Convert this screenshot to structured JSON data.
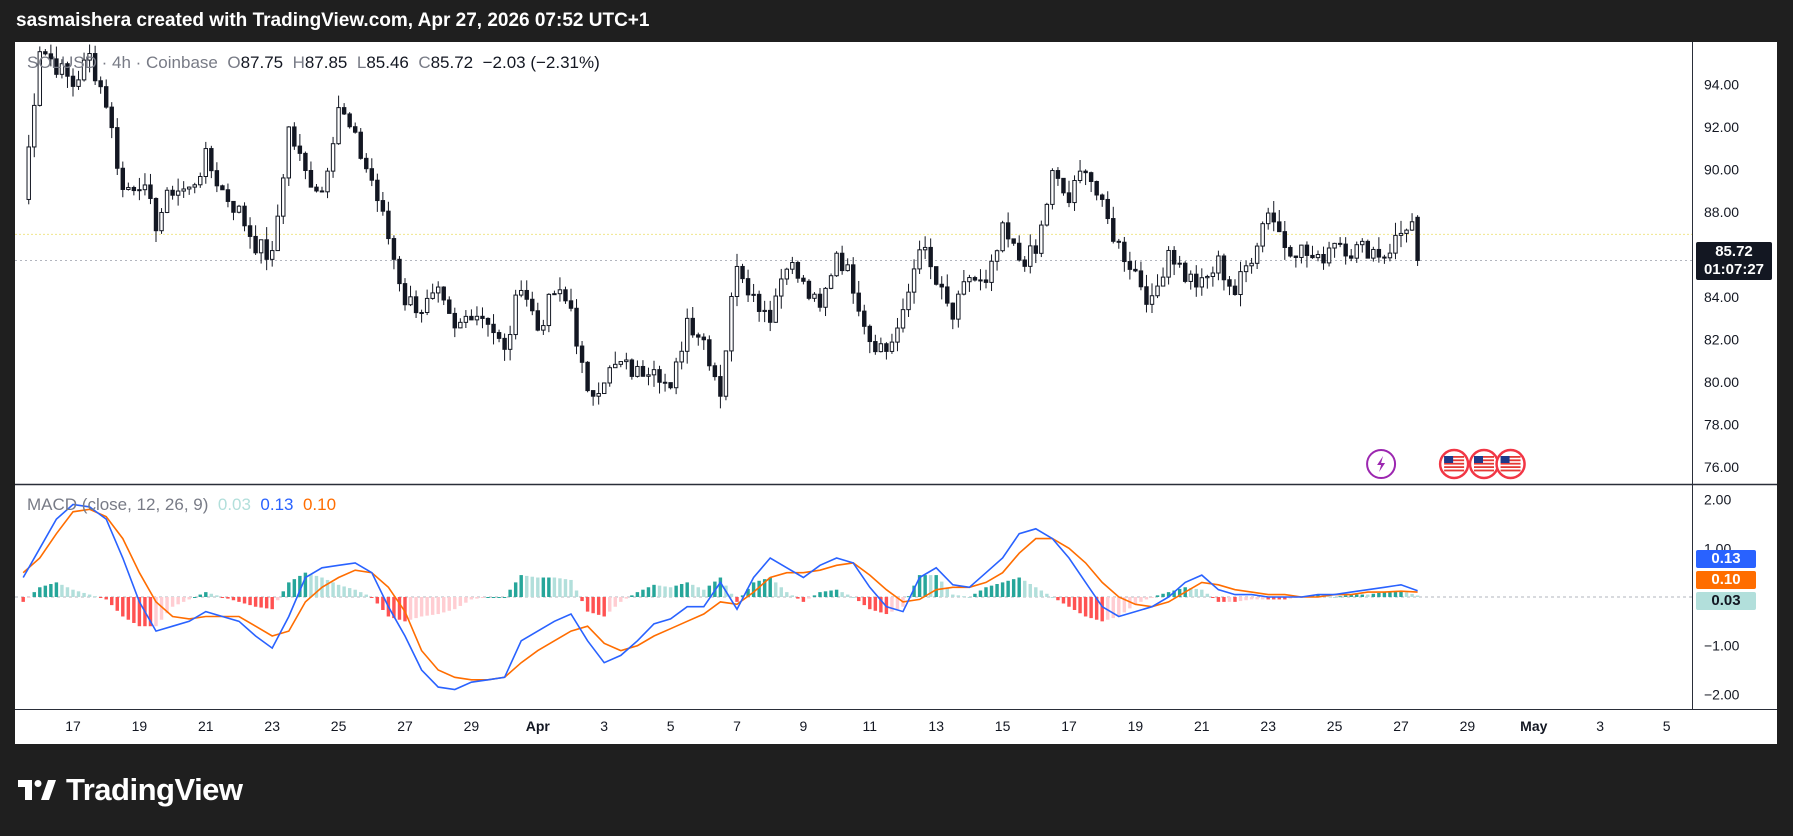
{
  "header": {
    "caption": "sasmaishera created with TradingView.com, Apr 27, 2026 07:52 UTC+1"
  },
  "footer": {
    "brand": "TradingView"
  },
  "legend": {
    "symbol": "SOLUSD · 4h · Coinbase",
    "o_label": "O",
    "o": "87.75",
    "h_label": "H",
    "h": "87.85",
    "l_label": "L",
    "l": "85.46",
    "c_label": "C",
    "c": "85.72",
    "change": "−2.03 (−2.31%)"
  },
  "macd_legend": {
    "label": "MACD (close, 12, 26, 9)",
    "hist": "0.03",
    "macd": "0.13",
    "signal": "0.10"
  },
  "tags": {
    "price": "85.72",
    "countdown": "01:07:27",
    "macd": "0.13",
    "signal": "0.10",
    "hist": "0.03"
  },
  "colors": {
    "up": "#26a69a",
    "down": "#ef5350",
    "candle_body_up": "#ffffff",
    "candle_body_down": "#131722",
    "macd_line": "#2962ff",
    "signal_line": "#ff6d00",
    "hist_up_strong": "#26a69a",
    "hist_up_weak": "#b2dfdb",
    "hist_down_strong": "#ff5252",
    "hist_down_weak": "#ffcdd2"
  },
  "chart_data": [
    {
      "type": "candlestick",
      "title": "SOLUSD · 4h · Coinbase",
      "ylim": [
        75.2,
        96.0
      ],
      "y_ticks": [
        "94.00",
        "92.00",
        "90.00",
        "88.00",
        "86.00",
        "84.00",
        "82.00",
        "80.00",
        "78.00",
        "76.00"
      ],
      "x_ticks": [
        "17",
        "19",
        "21",
        "23",
        "25",
        "27",
        "29",
        "Apr",
        "3",
        "5",
        "7",
        "9",
        "11",
        "13",
        "15",
        "17",
        "19",
        "21",
        "23",
        "25",
        "27",
        "29",
        "May",
        "3",
        "5"
      ],
      "series": [
        {
          "name": "SOLUSD",
          "path": [
            [
              15.5,
              88.6
            ],
            [
              16.0,
              95.8
            ],
            [
              17.0,
              94.0
            ],
            [
              17.5,
              95.3
            ],
            [
              18.0,
              93.2
            ],
            [
              18.5,
              89.0
            ],
            [
              19.0,
              89.5
            ],
            [
              19.5,
              87.5
            ],
            [
              20.0,
              89.1
            ],
            [
              20.5,
              89.0
            ],
            [
              21.0,
              90.5
            ],
            [
              21.5,
              89.0
            ],
            [
              22.0,
              88.0
            ],
            [
              22.5,
              86.5
            ],
            [
              23.0,
              85.8
            ],
            [
              23.5,
              91.9
            ],
            [
              24.0,
              89.8
            ],
            [
              24.5,
              89.0
            ],
            [
              25.0,
              93.0
            ],
            [
              25.5,
              91.3
            ],
            [
              26.0,
              89.5
            ],
            [
              26.5,
              86.8
            ],
            [
              27.0,
              83.9
            ],
            [
              27.5,
              83.5
            ],
            [
              28.0,
              84.0
            ],
            [
              28.5,
              82.3
            ],
            [
              29.0,
              83.4
            ],
            [
              29.5,
              83.0
            ],
            [
              30.0,
              81.3
            ],
            [
              30.5,
              84.8
            ],
            [
              31.0,
              82.5
            ],
            [
              31.5,
              84.2
            ],
            [
              32.0,
              83.5
            ],
            [
              32.5,
              79.2
            ],
            [
              33.0,
              80.3
            ],
            [
              33.5,
              80.8
            ],
            [
              34.0,
              80.4
            ],
            [
              34.5,
              81.0
            ],
            [
              35.0,
              79.4
            ],
            [
              35.5,
              83.0
            ],
            [
              36.0,
              82.0
            ],
            [
              36.5,
              79.6
            ],
            [
              37.0,
              85.8
            ],
            [
              37.5,
              84.0
            ],
            [
              38.0,
              83.2
            ],
            [
              38.5,
              85.8
            ],
            [
              39.0,
              84.5
            ],
            [
              39.5,
              83.3
            ],
            [
              40.0,
              86.2
            ],
            [
              40.5,
              84.6
            ],
            [
              41.0,
              82.1
            ],
            [
              41.5,
              81.5
            ],
            [
              42.0,
              83.0
            ],
            [
              42.5,
              86.6
            ],
            [
              43.0,
              84.6
            ],
            [
              43.5,
              83.0
            ],
            [
              44.0,
              85.0
            ],
            [
              44.5,
              84.4
            ],
            [
              45.0,
              87.0
            ],
            [
              45.5,
              85.8
            ],
            [
              46.0,
              86.0
            ],
            [
              46.5,
              89.7
            ],
            [
              47.0,
              88.5
            ],
            [
              47.5,
              90.3
            ],
            [
              48.0,
              88.1
            ],
            [
              48.5,
              86.4
            ],
            [
              49.0,
              85.2
            ],
            [
              49.5,
              83.6
            ],
            [
              50.0,
              86.3
            ],
            [
              50.5,
              85.0
            ],
            [
              51.0,
              84.5
            ],
            [
              51.5,
              85.6
            ],
            [
              52.0,
              84.2
            ],
            [
              52.5,
              86.0
            ],
            [
              53.0,
              88.2
            ],
            [
              53.5,
              86.5
            ],
            [
              54.0,
              86.2
            ],
            [
              54.5,
              85.6
            ],
            [
              55.0,
              86.8
            ],
            [
              55.5,
              86.2
            ],
            [
              56.0,
              86.3
            ],
            [
              56.5,
              86.0
            ],
            [
              57.0,
              87.0
            ],
            [
              57.3,
              87.75
            ],
            [
              57.5,
              85.72
            ]
          ],
          "candles": {
            "o": 87.75,
            "h": 87.85,
            "l": 85.46,
            "c": 85.72
          }
        }
      ],
      "horizontal_lines": [
        86.95,
        85.72
      ]
    },
    {
      "type": "line",
      "title": "MACD (close, 12, 26, 9)",
      "ylim": [
        -2.3,
        2.3
      ],
      "y_ticks": [
        "2.00",
        "1.00",
        "0.00",
        "−1.00",
        "−2.00"
      ],
      "series": [
        {
          "name": "MACD",
          "points": [
            [
              15.5,
              0.4
            ],
            [
              16.0,
              1.0
            ],
            [
              16.5,
              1.6
            ],
            [
              17.0,
              1.9
            ],
            [
              17.5,
              1.85
            ],
            [
              18.0,
              1.6
            ],
            [
              18.5,
              0.8
            ],
            [
              19.0,
              -0.1
            ],
            [
              19.5,
              -0.7
            ],
            [
              20.0,
              -0.6
            ],
            [
              20.5,
              -0.5
            ],
            [
              21.0,
              -0.3
            ],
            [
              21.5,
              -0.4
            ],
            [
              22.0,
              -0.5
            ],
            [
              22.5,
              -0.8
            ],
            [
              23.0,
              -1.05
            ],
            [
              23.5,
              -0.4
            ],
            [
              24.0,
              0.4
            ],
            [
              24.5,
              0.6
            ],
            [
              25.0,
              0.65
            ],
            [
              25.5,
              0.7
            ],
            [
              26.0,
              0.5
            ],
            [
              26.5,
              -0.2
            ],
            [
              27.0,
              -0.8
            ],
            [
              27.5,
              -1.5
            ],
            [
              28.0,
              -1.85
            ],
            [
              28.5,
              -1.9
            ],
            [
              29.0,
              -1.75
            ],
            [
              29.5,
              -1.7
            ],
            [
              30.0,
              -1.65
            ],
            [
              30.5,
              -0.9
            ],
            [
              31.0,
              -0.7
            ],
            [
              31.5,
              -0.5
            ],
            [
              32.0,
              -0.35
            ],
            [
              32.5,
              -0.9
            ],
            [
              33.0,
              -1.35
            ],
            [
              33.5,
              -1.2
            ],
            [
              34.0,
              -0.9
            ],
            [
              34.5,
              -0.55
            ],
            [
              35.0,
              -0.45
            ],
            [
              35.5,
              -0.2
            ],
            [
              36.0,
              -0.2
            ],
            [
              36.5,
              0.3
            ],
            [
              37.0,
              -0.25
            ],
            [
              37.5,
              0.4
            ],
            [
              38.0,
              0.8
            ],
            [
              38.5,
              0.6
            ],
            [
              39.0,
              0.4
            ],
            [
              39.5,
              0.65
            ],
            [
              40.0,
              0.8
            ],
            [
              40.5,
              0.7
            ],
            [
              41.0,
              0.2
            ],
            [
              41.5,
              -0.2
            ],
            [
              42.0,
              -0.3
            ],
            [
              42.5,
              0.4
            ],
            [
              43.0,
              0.6
            ],
            [
              43.5,
              0.25
            ],
            [
              44.0,
              0.2
            ],
            [
              44.5,
              0.5
            ],
            [
              45.0,
              0.8
            ],
            [
              45.5,
              1.3
            ],
            [
              46.0,
              1.4
            ],
            [
              46.5,
              1.2
            ],
            [
              47.0,
              0.8
            ],
            [
              47.5,
              0.3
            ],
            [
              48.0,
              -0.2
            ],
            [
              48.5,
              -0.4
            ],
            [
              49.0,
              -0.3
            ],
            [
              49.5,
              -0.2
            ],
            [
              50.0,
              0.0
            ],
            [
              50.5,
              0.3
            ],
            [
              51.0,
              0.45
            ],
            [
              51.5,
              0.15
            ],
            [
              52.0,
              0.05
            ],
            [
              52.5,
              0.05
            ],
            [
              53.0,
              0.0
            ],
            [
              53.5,
              0.0
            ],
            [
              54.0,
              0.0
            ],
            [
              54.5,
              0.05
            ],
            [
              55.0,
              0.05
            ],
            [
              55.5,
              0.1
            ],
            [
              56.0,
              0.15
            ],
            [
              56.5,
              0.2
            ],
            [
              57.0,
              0.25
            ],
            [
              57.5,
              0.13
            ]
          ]
        },
        {
          "name": "Signal",
          "points": [
            [
              15.5,
              0.5
            ],
            [
              16.0,
              0.8
            ],
            [
              16.5,
              1.3
            ],
            [
              17.0,
              1.75
            ],
            [
              17.5,
              1.8
            ],
            [
              18.0,
              1.65
            ],
            [
              18.5,
              1.2
            ],
            [
              19.0,
              0.5
            ],
            [
              19.5,
              -0.1
            ],
            [
              20.0,
              -0.4
            ],
            [
              20.5,
              -0.45
            ],
            [
              21.0,
              -0.4
            ],
            [
              21.5,
              -0.4
            ],
            [
              22.0,
              -0.4
            ],
            [
              22.5,
              -0.6
            ],
            [
              23.0,
              -0.8
            ],
            [
              23.5,
              -0.7
            ],
            [
              24.0,
              -0.1
            ],
            [
              24.5,
              0.2
            ],
            [
              25.0,
              0.4
            ],
            [
              25.5,
              0.55
            ],
            [
              26.0,
              0.5
            ],
            [
              26.5,
              0.2
            ],
            [
              27.0,
              -0.3
            ],
            [
              27.5,
              -1.1
            ],
            [
              28.0,
              -1.5
            ],
            [
              28.5,
              -1.65
            ],
            [
              29.0,
              -1.7
            ],
            [
              29.5,
              -1.7
            ],
            [
              30.0,
              -1.65
            ],
            [
              30.5,
              -1.35
            ],
            [
              31.0,
              -1.1
            ],
            [
              31.5,
              -0.9
            ],
            [
              32.0,
              -0.7
            ],
            [
              32.5,
              -0.6
            ],
            [
              33.0,
              -0.95
            ],
            [
              33.5,
              -1.1
            ],
            [
              34.0,
              -1.0
            ],
            [
              34.5,
              -0.8
            ],
            [
              35.0,
              -0.65
            ],
            [
              35.5,
              -0.5
            ],
            [
              36.0,
              -0.35
            ],
            [
              36.5,
              -0.1
            ],
            [
              37.0,
              -0.15
            ],
            [
              37.5,
              0.1
            ],
            [
              38.0,
              0.4
            ],
            [
              38.5,
              0.5
            ],
            [
              39.0,
              0.5
            ],
            [
              39.5,
              0.55
            ],
            [
              40.0,
              0.65
            ],
            [
              40.5,
              0.7
            ],
            [
              41.0,
              0.45
            ],
            [
              41.5,
              0.15
            ],
            [
              42.0,
              -0.1
            ],
            [
              42.5,
              -0.05
            ],
            [
              43.0,
              0.15
            ],
            [
              43.5,
              0.2
            ],
            [
              44.0,
              0.2
            ],
            [
              44.5,
              0.3
            ],
            [
              45.0,
              0.5
            ],
            [
              45.5,
              0.9
            ],
            [
              46.0,
              1.2
            ],
            [
              46.5,
              1.2
            ],
            [
              47.0,
              1.0
            ],
            [
              47.5,
              0.7
            ],
            [
              48.0,
              0.3
            ],
            [
              48.5,
              0.0
            ],
            [
              49.0,
              -0.15
            ],
            [
              49.5,
              -0.2
            ],
            [
              50.0,
              -0.1
            ],
            [
              50.5,
              0.1
            ],
            [
              51.0,
              0.3
            ],
            [
              51.5,
              0.25
            ],
            [
              52.0,
              0.15
            ],
            [
              52.5,
              0.1
            ],
            [
              53.0,
              0.05
            ],
            [
              53.5,
              0.05
            ],
            [
              54.0,
              0.0
            ],
            [
              54.5,
              0.0
            ],
            [
              55.0,
              0.05
            ],
            [
              55.5,
              0.05
            ],
            [
              56.0,
              0.1
            ],
            [
              56.5,
              0.1
            ],
            [
              57.0,
              0.12
            ],
            [
              57.5,
              0.1
            ]
          ]
        }
      ]
    }
  ]
}
